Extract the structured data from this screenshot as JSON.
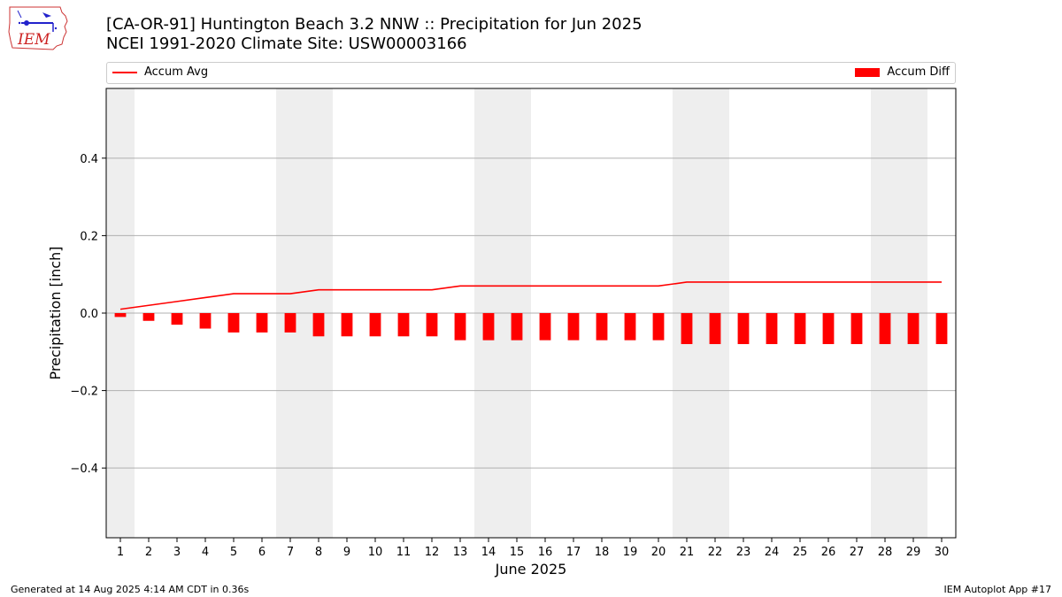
{
  "header": {
    "title_line1": "[CA-OR-91] Huntington Beach 3.2 NNW :: Precipitation for Jun 2025",
    "title_line2": "NCEI 1991-2020 Climate Site: USW00003166"
  },
  "logo": {
    "text": "IEM",
    "icon": "iem-iowa-logo-icon"
  },
  "footer": {
    "generated": "Generated at 14 Aug 2025 4:14 AM CDT in 0.36s",
    "app": "IEM Autoplot App #17"
  },
  "colors": {
    "series": "#ff0000",
    "weekend_shade": "#eeeeee",
    "grid": "#b0b0b0"
  },
  "chart_data": {
    "type": "bar",
    "xlabel": "June 2025",
    "ylabel": "Precipitation [inch]",
    "ylim": [
      -0.58,
      0.58
    ],
    "yticks": [
      -0.4,
      -0.2,
      0.0,
      0.2,
      0.4
    ],
    "ytick_labels": [
      "−0.4",
      "−0.2",
      "0.0",
      "0.2",
      "0.4"
    ],
    "grid": "horizontal",
    "legend_placement": "top",
    "categories": [
      "1",
      "2",
      "3",
      "4",
      "5",
      "6",
      "7",
      "8",
      "9",
      "10",
      "11",
      "12",
      "13",
      "14",
      "15",
      "16",
      "17",
      "18",
      "19",
      "20",
      "21",
      "22",
      "23",
      "24",
      "25",
      "26",
      "27",
      "28",
      "29",
      "30"
    ],
    "weekend_days": [
      1,
      7,
      8,
      14,
      15,
      21,
      22,
      28,
      29
    ],
    "series": [
      {
        "name": "Accum Avg",
        "kind": "line",
        "values": [
          0.01,
          0.02,
          0.03,
          0.04,
          0.05,
          0.05,
          0.05,
          0.06,
          0.06,
          0.06,
          0.06,
          0.06,
          0.07,
          0.07,
          0.07,
          0.07,
          0.07,
          0.07,
          0.07,
          0.07,
          0.08,
          0.08,
          0.08,
          0.08,
          0.08,
          0.08,
          0.08,
          0.08,
          0.08,
          0.08
        ]
      },
      {
        "name": "Accum Diff",
        "kind": "bar",
        "values": [
          -0.01,
          -0.02,
          -0.03,
          -0.04,
          -0.05,
          -0.05,
          -0.05,
          -0.06,
          -0.06,
          -0.06,
          -0.06,
          -0.06,
          -0.07,
          -0.07,
          -0.07,
          -0.07,
          -0.07,
          -0.07,
          -0.07,
          -0.07,
          -0.08,
          -0.08,
          -0.08,
          -0.08,
          -0.08,
          -0.08,
          -0.08,
          -0.08,
          -0.08,
          -0.08
        ]
      }
    ]
  }
}
